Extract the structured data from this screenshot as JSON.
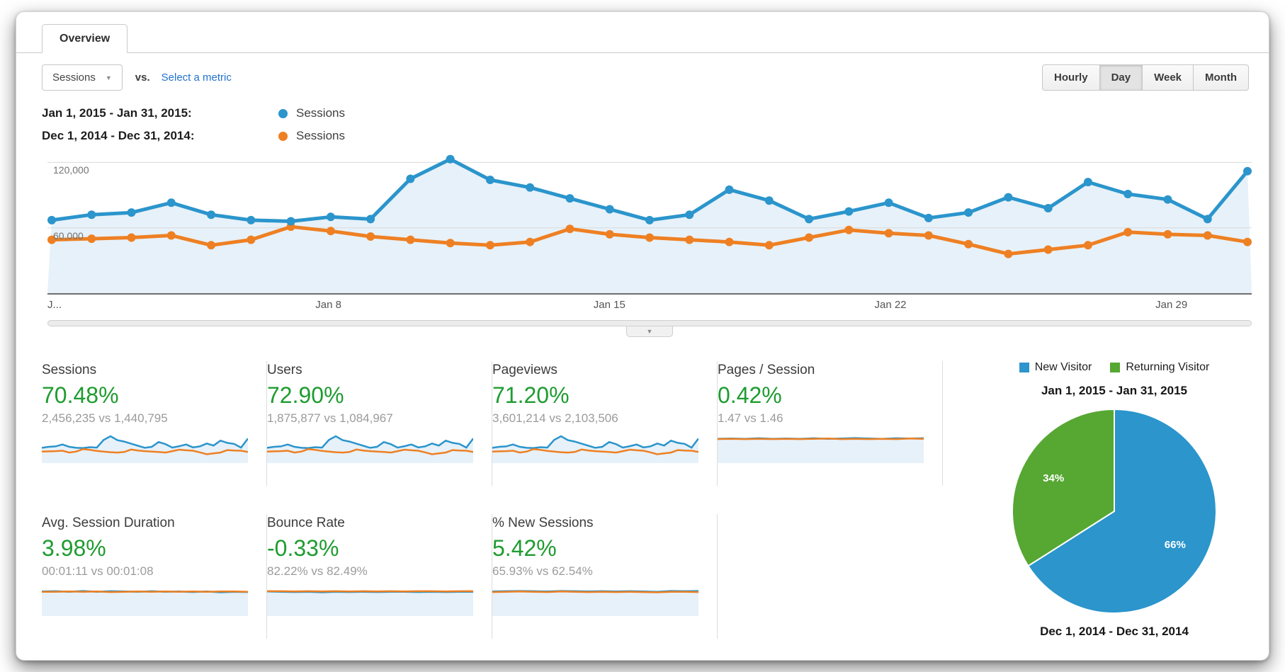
{
  "colors": {
    "series_blue": "#2b95cc",
    "series_orange": "#ee8023",
    "positive_green": "#1e9c30",
    "pie_green": "#57a733",
    "link_blue": "#2373ce",
    "area_fill": "#e7f1f9"
  },
  "tab": {
    "label": "Overview"
  },
  "controls": {
    "metric_select": {
      "value": "Sessions"
    },
    "vs_label": "vs.",
    "select_metric_link": "Select a metric",
    "granularity": {
      "options": [
        "Hourly",
        "Day",
        "Week",
        "Month"
      ],
      "selected": "Day"
    }
  },
  "legend": [
    {
      "range": "Jan 1, 2015 - Jan 31, 2015:",
      "series": "Sessions",
      "color": "#2b95cc"
    },
    {
      "range": "Dec 1, 2014 - Dec 31, 2014:",
      "series": "Sessions",
      "color": "#ee8023"
    }
  ],
  "chart_data": [
    {
      "type": "line",
      "x_tick_labels": [
        "J...",
        "Jan 8",
        "Jan 15",
        "Jan 22",
        "Jan 29"
      ],
      "x_tick_days": [
        1,
        8,
        15,
        22,
        29
      ],
      "days": 31,
      "y_tick_labels": [
        "60,000",
        "120,000"
      ],
      "y_ticks": [
        60000,
        120000
      ],
      "ylim": [
        0,
        130000
      ],
      "grid": true,
      "series": [
        {
          "name": "Sessions — Jan 1, 2015 - Jan 31, 2015",
          "color": "#2b95cc",
          "values": [
            67000,
            72000,
            74000,
            83000,
            72000,
            67000,
            66000,
            70000,
            68000,
            105000,
            123000,
            104000,
            97000,
            87000,
            77000,
            67000,
            72000,
            95000,
            85000,
            68000,
            75000,
            83000,
            69000,
            74000,
            88000,
            78000,
            102000,
            91000,
            86000,
            68000,
            112000
          ]
        },
        {
          "name": "Sessions — Dec 1, 2014 - Dec 31, 2014",
          "color": "#ee8023",
          "values": [
            49000,
            50000,
            51000,
            53000,
            44000,
            49000,
            61000,
            57000,
            52000,
            49000,
            46000,
            44000,
            47000,
            59000,
            54000,
            51000,
            49000,
            47000,
            44000,
            51000,
            58000,
            55000,
            53000,
            45000,
            36000,
            40000,
            44000,
            56000,
            54000,
            53000,
            47000
          ]
        }
      ]
    },
    {
      "type": "pie",
      "title": "Jan 1, 2015 - Jan 31, 2015",
      "labels": [
        "New Visitor",
        "Returning Visitor"
      ],
      "values": [
        66,
        34
      ],
      "unit": "%",
      "slice_labels": [
        "66%",
        "34%"
      ],
      "colors": [
        "#2b95cc",
        "#57a733"
      ],
      "legend_position": "top",
      "footer": "Dec 1, 2014 - Dec 31, 2014"
    }
  ],
  "scorecards": [
    {
      "title": "Sessions",
      "change": "70.48%",
      "comparison": "2,456,235 vs 1,440,795",
      "spark": "main"
    },
    {
      "title": "Users",
      "change": "72.90%",
      "comparison": "1,875,877 vs 1,084,967",
      "spark": "main"
    },
    {
      "title": "Pageviews",
      "change": "71.20%",
      "comparison": "3,601,214 vs 2,103,506",
      "spark": "main"
    },
    {
      "title": "Pages / Session",
      "change": "0.42%",
      "comparison": "1.47 vs 1.46",
      "spark": "flat",
      "spark_blue": [
        0.85,
        0.86,
        0.85,
        0.87,
        0.85,
        0.86,
        0.85,
        0.87,
        0.85,
        0.86,
        0.88,
        0.86,
        0.85,
        0.87,
        0.86,
        0.87
      ],
      "spark_orange": [
        0.84,
        0.85,
        0.84,
        0.85,
        0.84,
        0.85,
        0.84,
        0.85,
        0.86,
        0.84,
        0.85,
        0.84,
        0.85,
        0.84,
        0.86,
        0.85
      ]
    },
    {
      "title": "Avg. Session Duration",
      "change": "3.98%",
      "comparison": "00:01:11 vs 00:01:08",
      "spark": "flat",
      "spark_blue": [
        0.86,
        0.87,
        0.85,
        0.88,
        0.85,
        0.87,
        0.86,
        0.85,
        0.87,
        0.85,
        0.86,
        0.84,
        0.86,
        0.83,
        0.85,
        0.84
      ],
      "spark_orange": [
        0.85,
        0.85,
        0.86,
        0.85,
        0.86,
        0.84,
        0.85,
        0.86,
        0.85,
        0.86,
        0.85,
        0.86,
        0.85,
        0.86,
        0.86,
        0.85
      ]
    },
    {
      "title": "Bounce Rate",
      "change": "-0.33%",
      "comparison": "82.22% vs 82.49%",
      "spark": "flat",
      "spark_blue": [
        0.86,
        0.85,
        0.84,
        0.85,
        0.83,
        0.85,
        0.84,
        0.85,
        0.84,
        0.85,
        0.85,
        0.84,
        0.85,
        0.84,
        0.85,
        0.85
      ],
      "spark_orange": [
        0.87,
        0.87,
        0.86,
        0.87,
        0.86,
        0.87,
        0.86,
        0.87,
        0.86,
        0.87,
        0.86,
        0.87,
        0.87,
        0.86,
        0.87,
        0.87
      ]
    },
    {
      "title": "% New Sessions",
      "change": "5.42%",
      "comparison": "65.93% vs 62.54%",
      "spark": "flat",
      "spark_blue": [
        0.86,
        0.87,
        0.88,
        0.87,
        0.86,
        0.88,
        0.87,
        0.86,
        0.87,
        0.86,
        0.87,
        0.86,
        0.85,
        0.88,
        0.87,
        0.88
      ],
      "spark_orange": [
        0.84,
        0.85,
        0.86,
        0.85,
        0.84,
        0.86,
        0.85,
        0.84,
        0.85,
        0.84,
        0.85,
        0.84,
        0.83,
        0.85,
        0.85,
        0.84
      ]
    }
  ],
  "slider": {
    "collapse_icon": "▼",
    "select_caret": "▼"
  }
}
